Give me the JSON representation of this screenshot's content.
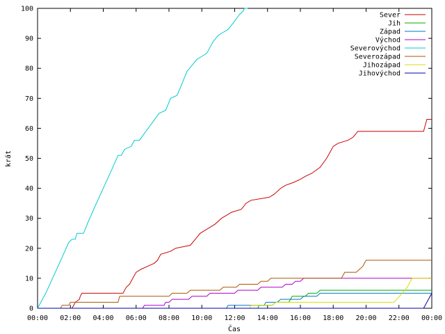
{
  "chart_data": {
    "type": "line",
    "xlabel": "Čas",
    "ylabel": "krát",
    "xlim": [
      0,
      24
    ],
    "ylim": [
      0,
      100
    ],
    "grid": false,
    "legend_position": "top-right",
    "x_ticks": [
      {
        "value": 0,
        "label": "00:00"
      },
      {
        "value": 2,
        "label": "02:00"
      },
      {
        "value": 4,
        "label": "04:00"
      },
      {
        "value": 6,
        "label": "06:00"
      },
      {
        "value": 8,
        "label": "08:00"
      },
      {
        "value": 10,
        "label": "10:00"
      },
      {
        "value": 12,
        "label": "12:00"
      },
      {
        "value": 14,
        "label": "14:00"
      },
      {
        "value": 16,
        "label": "16:00"
      },
      {
        "value": 18,
        "label": "18:00"
      },
      {
        "value": 20,
        "label": "20:00"
      },
      {
        "value": 22,
        "label": "22:00"
      },
      {
        "value": 24,
        "label": "00:00"
      }
    ],
    "y_ticks": [
      {
        "value": 0,
        "label": "0"
      },
      {
        "value": 10,
        "label": "10"
      },
      {
        "value": 20,
        "label": "20"
      },
      {
        "value": 30,
        "label": "30"
      },
      {
        "value": 40,
        "label": "40"
      },
      {
        "value": 50,
        "label": "50"
      },
      {
        "value": 60,
        "label": "60"
      },
      {
        "value": 70,
        "label": "70"
      },
      {
        "value": 80,
        "label": "80"
      },
      {
        "value": 90,
        "label": "90"
      },
      {
        "value": 100,
        "label": "100"
      }
    ],
    "series": [
      {
        "name": "Sever",
        "color": "#cc0000",
        "points": [
          [
            0,
            0
          ],
          [
            2.1,
            0
          ],
          [
            2.2,
            1
          ],
          [
            2.3,
            2
          ],
          [
            2.55,
            3
          ],
          [
            2.6,
            4
          ],
          [
            2.7,
            5
          ],
          [
            5.2,
            5
          ],
          [
            5.4,
            7
          ],
          [
            5.6,
            8
          ],
          [
            5.8,
            10
          ],
          [
            6,
            12
          ],
          [
            6.3,
            13
          ],
          [
            6.7,
            14
          ],
          [
            7.1,
            15
          ],
          [
            7.3,
            16
          ],
          [
            7.5,
            18
          ],
          [
            8.1,
            19
          ],
          [
            8.4,
            20
          ],
          [
            9.3,
            21
          ],
          [
            9.6,
            23
          ],
          [
            9.9,
            25
          ],
          [
            10.2,
            26
          ],
          [
            10.5,
            27
          ],
          [
            10.8,
            28
          ],
          [
            11.2,
            30
          ],
          [
            11.5,
            31
          ],
          [
            11.8,
            32
          ],
          [
            12.4,
            33
          ],
          [
            12.7,
            35
          ],
          [
            13,
            36
          ],
          [
            14.1,
            37
          ],
          [
            14.4,
            38
          ],
          [
            14.8,
            40
          ],
          [
            15.1,
            41
          ],
          [
            15.6,
            42
          ],
          [
            16,
            43
          ],
          [
            16.3,
            44
          ],
          [
            16.7,
            45
          ],
          [
            17.2,
            47
          ],
          [
            17.6,
            50
          ],
          [
            18,
            54
          ],
          [
            18.3,
            55
          ],
          [
            18.9,
            56
          ],
          [
            19.2,
            57
          ],
          [
            19.5,
            59
          ],
          [
            23.5,
            59
          ],
          [
            23.7,
            63
          ],
          [
            24,
            63
          ]
        ]
      },
      {
        "name": "Jih",
        "color": "#00aa00",
        "points": [
          [
            0,
            0
          ],
          [
            13.4,
            0
          ],
          [
            13.5,
            1
          ],
          [
            14.3,
            1
          ],
          [
            14.5,
            2
          ],
          [
            15.3,
            2
          ],
          [
            15.5,
            4
          ],
          [
            16.3,
            4
          ],
          [
            16.5,
            5
          ],
          [
            17,
            5
          ],
          [
            17.2,
            6
          ],
          [
            24,
            6
          ]
        ]
      },
      {
        "name": "Západ",
        "color": "#0077cc",
        "points": [
          [
            0,
            0
          ],
          [
            11.5,
            0
          ],
          [
            11.6,
            1
          ],
          [
            13.8,
            1
          ],
          [
            13.9,
            2
          ],
          [
            14.6,
            2
          ],
          [
            14.8,
            3
          ],
          [
            16,
            3
          ],
          [
            16.2,
            4
          ],
          [
            17,
            4
          ],
          [
            17.2,
            5
          ],
          [
            24,
            5
          ]
        ]
      },
      {
        "name": "Východ",
        "color": "#aa00cc",
        "points": [
          [
            0,
            0
          ],
          [
            6.4,
            0
          ],
          [
            6.5,
            1
          ],
          [
            7.7,
            1
          ],
          [
            7.8,
            2
          ],
          [
            8.0,
            2
          ],
          [
            8.2,
            3
          ],
          [
            9.2,
            3
          ],
          [
            9.4,
            4
          ],
          [
            10.3,
            4
          ],
          [
            10.5,
            5
          ],
          [
            12,
            5
          ],
          [
            12.2,
            6
          ],
          [
            13.4,
            6
          ],
          [
            13.6,
            7
          ],
          [
            14.9,
            7
          ],
          [
            15.1,
            8
          ],
          [
            15.5,
            8
          ],
          [
            15.7,
            9
          ],
          [
            16,
            9
          ],
          [
            16.2,
            10
          ],
          [
            24,
            10
          ]
        ]
      },
      {
        "name": "Severovýchod",
        "color": "#00cccc",
        "points": [
          [
            0,
            0
          ],
          [
            0.5,
            5
          ],
          [
            1,
            11
          ],
          [
            1.5,
            17
          ],
          [
            1.9,
            22
          ],
          [
            2.1,
            23
          ],
          [
            2.3,
            23
          ],
          [
            2.4,
            25
          ],
          [
            2.8,
            25
          ],
          [
            3.1,
            29
          ],
          [
            3.5,
            34
          ],
          [
            4,
            40
          ],
          [
            4.5,
            46
          ],
          [
            4.9,
            51
          ],
          [
            5.1,
            51
          ],
          [
            5.3,
            53
          ],
          [
            5.7,
            54
          ],
          [
            5.9,
            56
          ],
          [
            6.2,
            56
          ],
          [
            6.6,
            59
          ],
          [
            7,
            62
          ],
          [
            7.4,
            65
          ],
          [
            7.8,
            66
          ],
          [
            8.1,
            70
          ],
          [
            8.5,
            71
          ],
          [
            8.8,
            75
          ],
          [
            9.1,
            79
          ],
          [
            9.4,
            81
          ],
          [
            9.7,
            83
          ],
          [
            10,
            84
          ],
          [
            10.3,
            85
          ],
          [
            10.7,
            89
          ],
          [
            11,
            91
          ],
          [
            11.3,
            92
          ],
          [
            11.6,
            93
          ],
          [
            11.9,
            95
          ],
          [
            12.3,
            98
          ],
          [
            12.5,
            99
          ],
          [
            12.6,
            100
          ],
          [
            12.8,
            100
          ]
        ]
      },
      {
        "name": "Severozápad",
        "color": "#aa5500",
        "points": [
          [
            0,
            0
          ],
          [
            1.4,
            0
          ],
          [
            1.5,
            1
          ],
          [
            1.9,
            1
          ],
          [
            2,
            2
          ],
          [
            4.9,
            2
          ],
          [
            5,
            4
          ],
          [
            8,
            4
          ],
          [
            8.2,
            5
          ],
          [
            9.1,
            5
          ],
          [
            9.3,
            6
          ],
          [
            11.1,
            6
          ],
          [
            11.3,
            7
          ],
          [
            12.1,
            7
          ],
          [
            12.3,
            8
          ],
          [
            13.4,
            8
          ],
          [
            13.6,
            9
          ],
          [
            14,
            9
          ],
          [
            14.2,
            10
          ],
          [
            18.5,
            10
          ],
          [
            18.7,
            12
          ],
          [
            19.4,
            12
          ],
          [
            19.6,
            13
          ],
          [
            19.8,
            14
          ],
          [
            20,
            16
          ],
          [
            24,
            16
          ]
        ]
      },
      {
        "name": "Jihozápad",
        "color": "#dddd00",
        "points": [
          [
            0,
            0
          ],
          [
            12.9,
            0
          ],
          [
            13,
            1
          ],
          [
            14.3,
            1
          ],
          [
            14.5,
            2
          ],
          [
            21.7,
            2
          ],
          [
            22.2,
            5
          ],
          [
            22.5,
            7
          ],
          [
            22.8,
            10
          ],
          [
            24,
            10
          ]
        ]
      },
      {
        "name": "Jihovýchod",
        "color": "#0000aa",
        "points": [
          [
            0,
            0
          ],
          [
            23.5,
            0
          ],
          [
            23.8,
            3
          ],
          [
            24,
            5
          ]
        ]
      }
    ]
  }
}
